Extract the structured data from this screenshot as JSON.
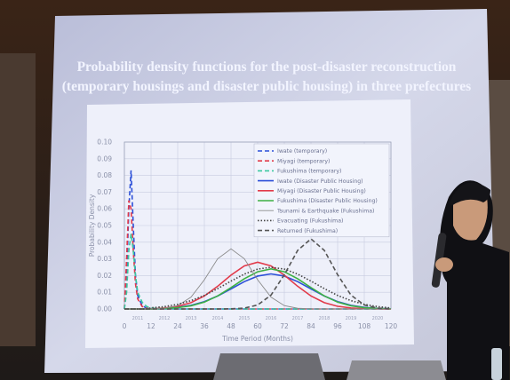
{
  "chart_data": {
    "type": "line",
    "title": [
      "Probability density functions for the post-disaster reconstruction",
      "(temporary housings and disaster public housing) in three prefectures"
    ],
    "x_label": "Time Period (Months)",
    "y_label": "Probability Density",
    "x": [
      0,
      1,
      2,
      3,
      4,
      5,
      6,
      8,
      10,
      12,
      18,
      24,
      30,
      36,
      42,
      48,
      54,
      60,
      66,
      72,
      78,
      84,
      90,
      96,
      102,
      108,
      114,
      120
    ],
    "xlim": [
      0,
      120
    ],
    "xticks": [
      0,
      12,
      24,
      36,
      48,
      60,
      72,
      84,
      96,
      108,
      120
    ],
    "year_ticks": [
      {
        "value": 6,
        "label": "2011"
      },
      {
        "value": 18,
        "label": "2012"
      },
      {
        "value": 30,
        "label": "2013"
      },
      {
        "value": 42,
        "label": "2014"
      },
      {
        "value": 54,
        "label": "2015"
      },
      {
        "value": 66,
        "label": "2016"
      },
      {
        "value": 78,
        "label": "2017"
      },
      {
        "value": 90,
        "label": "2018"
      },
      {
        "value": 102,
        "label": "2019"
      },
      {
        "value": 114,
        "label": "2020"
      }
    ],
    "ylim": [
      0,
      0.1
    ],
    "yticks": [
      {
        "value": 0,
        "label": "0.00"
      },
      {
        "value": 0.01,
        "label": "0.01"
      },
      {
        "value": 0.02,
        "label": "0.02"
      },
      {
        "value": 0.03,
        "label": "0.03"
      },
      {
        "value": 0.04,
        "label": "0.04"
      },
      {
        "value": 0.05,
        "label": "0.05"
      },
      {
        "value": 0.06,
        "label": "0.06"
      },
      {
        "value": 0.07,
        "label": "0.07"
      },
      {
        "value": 0.08,
        "label": "0.08"
      },
      {
        "value": 0.09,
        "label": "0.09"
      },
      {
        "value": 0.1,
        "label": "0.10"
      }
    ],
    "grid": true,
    "legend": "top-right",
    "series": [
      {
        "name": "Iwate (temporary)",
        "color": "#2b4fd8",
        "style": "dashed",
        "values": [
          0,
          0.02,
          0.06,
          0.083,
          0.05,
          0.02,
          0.008,
          0.002,
          0.0005,
          0.0001,
          0,
          0,
          0,
          0,
          0,
          0,
          0,
          0,
          0,
          0,
          0,
          0,
          0,
          0,
          0,
          0,
          0,
          0
        ]
      },
      {
        "name": "Miyagi (temporary)",
        "color": "#e23a4a",
        "style": "dashed",
        "values": [
          0,
          0.03,
          0.065,
          0.06,
          0.035,
          0.015,
          0.006,
          0.0015,
          0.0004,
          0.0001,
          0,
          0,
          0,
          0,
          0,
          0,
          0,
          0,
          0,
          0,
          0,
          0,
          0,
          0,
          0,
          0,
          0,
          0
        ]
      },
      {
        "name": "Fukushima (temporary)",
        "color": "#3cc8a0",
        "style": "dashed",
        "values": [
          0,
          0.01,
          0.035,
          0.045,
          0.035,
          0.02,
          0.01,
          0.004,
          0.0015,
          0.0005,
          0.0001,
          0,
          0,
          0,
          0,
          0,
          0,
          0,
          0,
          0,
          0,
          0,
          0,
          0,
          0,
          0,
          0,
          0
        ]
      },
      {
        "name": "Iwate (Disaster Public Housing)",
        "color": "#2b4fd8",
        "style": "solid",
        "values": [
          0,
          0,
          0,
          0,
          0,
          0,
          0,
          0,
          0,
          0,
          0.0004,
          0.001,
          0.0022,
          0.0044,
          0.0078,
          0.012,
          0.0164,
          0.0197,
          0.021,
          0.0197,
          0.0164,
          0.012,
          0.0078,
          0.0044,
          0.0022,
          0.001,
          0.0004,
          0.0001
        ]
      },
      {
        "name": "Miyagi (Disaster Public Housing)",
        "color": "#e23a4a",
        "style": "solid",
        "values": [
          0,
          0,
          0,
          0,
          0,
          0,
          0,
          0,
          0,
          0,
          0.0006,
          0.0016,
          0.0038,
          0.0078,
          0.0136,
          0.0203,
          0.0258,
          0.028,
          0.0258,
          0.0203,
          0.0136,
          0.0078,
          0.0038,
          0.0016,
          0.0006,
          0.0002,
          0.0001,
          0
        ]
      },
      {
        "name": "Fukushima (Disaster Public Housing)",
        "color": "#3cb043",
        "style": "solid",
        "values": [
          0,
          0,
          0,
          0,
          0,
          0,
          0,
          0,
          0,
          0,
          0.0003,
          0.0008,
          0.0019,
          0.0041,
          0.0078,
          0.0128,
          0.0181,
          0.0223,
          0.024,
          0.0223,
          0.0181,
          0.0128,
          0.0078,
          0.0041,
          0.0019,
          0.0008,
          0.0003,
          0.0001
        ]
      },
      {
        "name": "Tsunami & Earthquake (Fukushima)",
        "color": "#8a8a8a",
        "style": "thin",
        "values": [
          0,
          0,
          0,
          0,
          0,
          0,
          0,
          0,
          0,
          0.0001,
          0.0004,
          0.002,
          0.0071,
          0.0175,
          0.0301,
          0.036,
          0.0301,
          0.0175,
          0.0071,
          0.002,
          0.0004,
          0.0001,
          0,
          0,
          0,
          0,
          0,
          0
        ]
      },
      {
        "name": "Evacuating (Fukushima)",
        "color": "#444444",
        "style": "dotted",
        "values": [
          0,
          0,
          0,
          0,
          0,
          0,
          0,
          0,
          0,
          0.0007,
          0.0014,
          0.0028,
          0.005,
          0.0081,
          0.0122,
          0.0167,
          0.0209,
          0.0239,
          0.025,
          0.0239,
          0.0209,
          0.0167,
          0.0122,
          0.0081,
          0.005,
          0.0028,
          0.0014,
          0.0006
        ]
      },
      {
        "name": "Returned (Fukushima)",
        "color": "#555555",
        "style": "dashed",
        "values": [
          0,
          0,
          0,
          0,
          0,
          0,
          0,
          0,
          0,
          0,
          0,
          0,
          0,
          0,
          0,
          0.0001,
          0.0005,
          0.0024,
          0.0083,
          0.0205,
          0.0351,
          0.042,
          0.0351,
          0.0205,
          0.0083,
          0.0024,
          0.0005,
          0.0001
        ]
      }
    ]
  }
}
